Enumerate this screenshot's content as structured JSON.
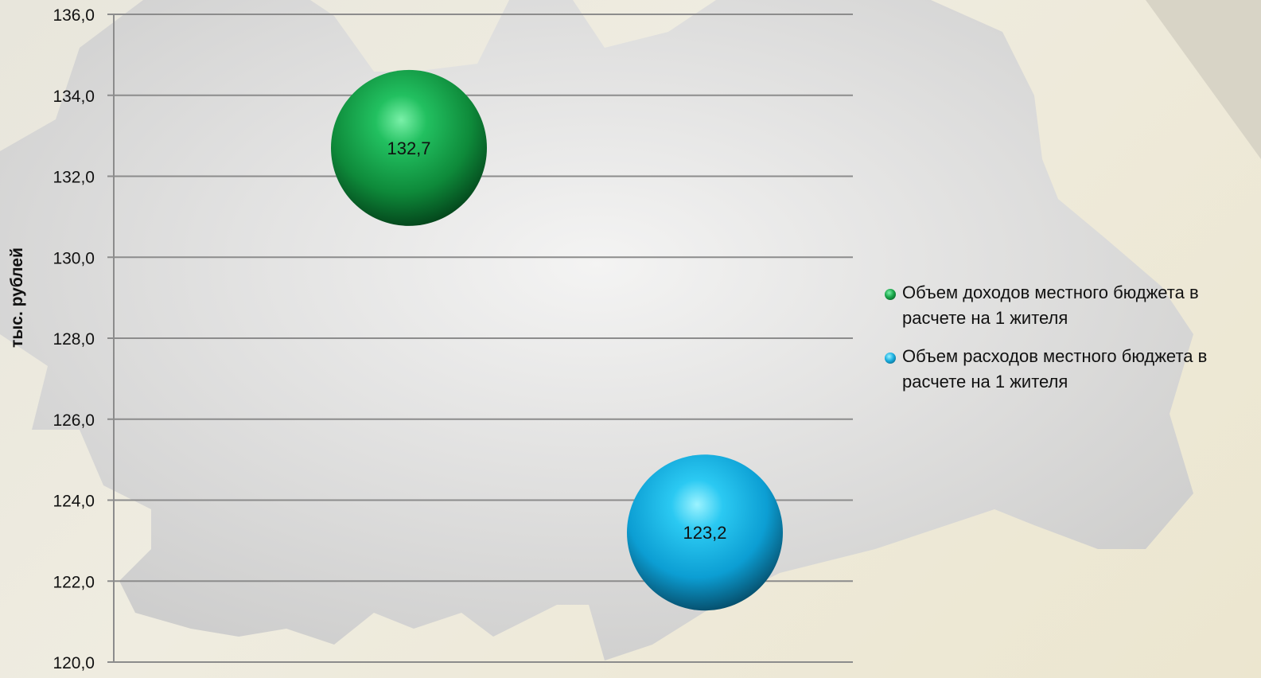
{
  "chart_data": {
    "type": "scatter",
    "ylabel": "тыс. рублей",
    "ylim": [
      120,
      136
    ],
    "y_ticks": [
      "120,0",
      "122,0",
      "124,0",
      "126,0",
      "128,0",
      "130,0",
      "132,0",
      "134,0",
      "136,0"
    ],
    "grid": true,
    "legend_position": "right",
    "series": [
      {
        "name": "Объем доходов местного бюджета в расчете на 1 жителя",
        "x": 1,
        "value": 132.7,
        "label": "132,7",
        "color": "#1aa64a"
      },
      {
        "name": "Объем расходов местного бюджета в расчете на 1 жителя",
        "x": 2,
        "value": 123.2,
        "label": "123,2",
        "color": "#1aaee0"
      }
    ]
  }
}
